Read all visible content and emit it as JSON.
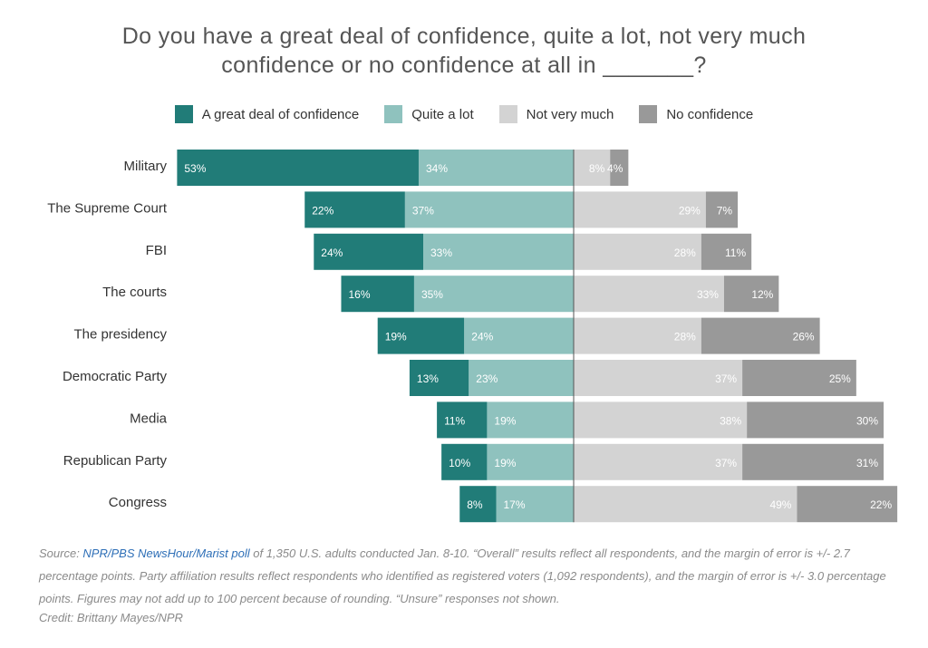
{
  "title": {
    "line1": "Do you have a great deal of confidence, quite a lot, not very much",
    "line2": "confidence or no confidence at all in _______?"
  },
  "colors": {
    "great_deal": "#217c78",
    "quite_a_lot": "#8fc2be",
    "not_very_much": "#d3d3d3",
    "no_confidence": "#999999"
  },
  "chart_data": {
    "type": "bar",
    "orientation": "horizontal-diverging",
    "categories": [
      "Military",
      "The Supreme Court",
      "FBI",
      "The courts",
      "The presidency",
      "Democratic Party",
      "Media",
      "Republican Party",
      "Congress"
    ],
    "series": [
      {
        "name": "A great deal of confidence",
        "values": [
          53,
          22,
          24,
          16,
          19,
          13,
          11,
          10,
          8
        ]
      },
      {
        "name": "Quite a lot",
        "values": [
          34,
          37,
          33,
          35,
          24,
          23,
          19,
          19,
          17
        ]
      },
      {
        "name": "Not very much",
        "values": [
          8,
          29,
          28,
          33,
          28,
          37,
          38,
          37,
          49
        ]
      },
      {
        "name": "No confidence",
        "values": [
          4,
          7,
          11,
          12,
          26,
          25,
          30,
          31,
          22
        ]
      }
    ],
    "legend_position": "top"
  },
  "footnote": {
    "source_prefix": "Source: ",
    "source_link": "NPR/PBS NewsHour/Marist poll",
    "source_text": " of 1,350 U.S. adults conducted Jan. 8-10. “Overall” results reflect all respondents, and the margin of error is +/- 2.7 percentage points. Party affiliation results reflect respondents who identified as registered voters (1,092 respondents), and the margin of error is +/- 3.0 percentage points. Figures may not add up to 100 percent because of rounding. “Unsure” responses not shown."
  },
  "credit": "Credit: Brittany Mayes/NPR"
}
